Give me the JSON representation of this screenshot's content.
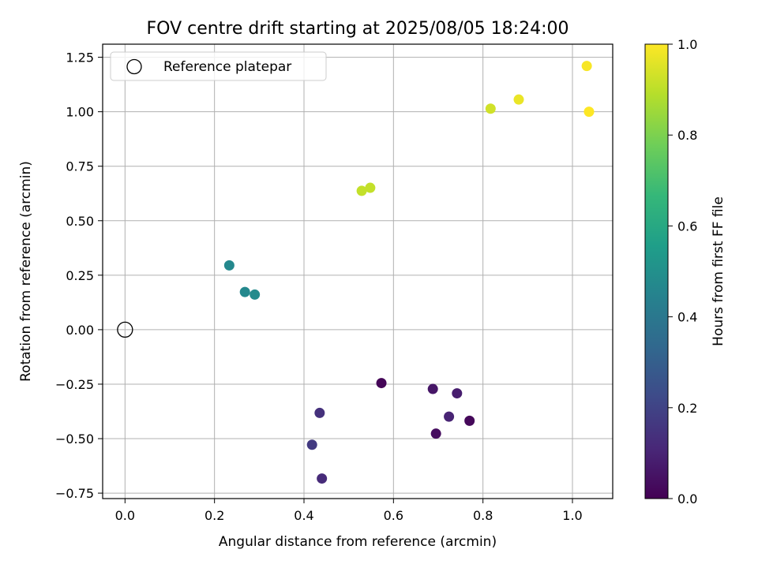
{
  "chart_data": {
    "type": "scatter",
    "title": "FOV centre drift starting at 2025/08/05 18:24:00",
    "xlabel": "Angular distance from reference (arcmin)",
    "ylabel": "Rotation from reference (arcmin)",
    "xlim": [
      -0.05,
      1.09
    ],
    "ylim": [
      -0.775,
      1.31
    ],
    "xticks": [
      0.0,
      0.2,
      0.4,
      0.6,
      0.8,
      1.0
    ],
    "xtick_labels": [
      "0.0",
      "0.2",
      "0.4",
      "0.6",
      "0.8",
      "1.0"
    ],
    "yticks": [
      -0.75,
      -0.5,
      -0.25,
      0.0,
      0.25,
      0.5,
      0.75,
      1.0,
      1.25
    ],
    "ytick_labels": [
      "−0.75",
      "−0.50",
      "−0.25",
      "0.00",
      "0.25",
      "0.50",
      "0.75",
      "1.00",
      "1.25"
    ],
    "grid": true,
    "legend": {
      "position": "top-left",
      "entries": [
        "Reference platepar"
      ]
    },
    "reference_point": {
      "x": 0.0,
      "y": 0.0
    },
    "colorbar": {
      "label": "Hours from first FF file",
      "colormap": "viridis",
      "range": [
        0.0,
        1.0
      ],
      "ticks": [
        0.0,
        0.2,
        0.4,
        0.6,
        0.8,
        1.0
      ],
      "tick_labels": [
        "0.0",
        "0.2",
        "0.4",
        "0.6",
        "0.8",
        "1.0"
      ]
    },
    "points": [
      {
        "x": 0.573,
        "y": -0.245,
        "c": 0.01
      },
      {
        "x": 0.77,
        "y": -0.418,
        "c": 0.02
      },
      {
        "x": 0.695,
        "y": -0.477,
        "c": 0.03
      },
      {
        "x": 0.688,
        "y": -0.272,
        "c": 0.06
      },
      {
        "x": 0.742,
        "y": -0.292,
        "c": 0.08
      },
      {
        "x": 0.724,
        "y": -0.399,
        "c": 0.1
      },
      {
        "x": 0.44,
        "y": -0.683,
        "c": 0.12
      },
      {
        "x": 0.435,
        "y": -0.382,
        "c": 0.14
      },
      {
        "x": 0.418,
        "y": -0.528,
        "c": 0.17
      },
      {
        "x": 0.233,
        "y": 0.295,
        "c": 0.47
      },
      {
        "x": 0.268,
        "y": 0.173,
        "c": 0.47
      },
      {
        "x": 0.29,
        "y": 0.161,
        "c": 0.48
      },
      {
        "x": 0.529,
        "y": 0.637,
        "c": 0.91
      },
      {
        "x": 0.548,
        "y": 0.651,
        "c": 0.91
      },
      {
        "x": 0.817,
        "y": 1.014,
        "c": 0.93
      },
      {
        "x": 0.88,
        "y": 1.056,
        "c": 0.97
      },
      {
        "x": 1.032,
        "y": 1.21,
        "c": 0.99
      },
      {
        "x": 1.037,
        "y": 1.0,
        "c": 1.0
      }
    ]
  }
}
